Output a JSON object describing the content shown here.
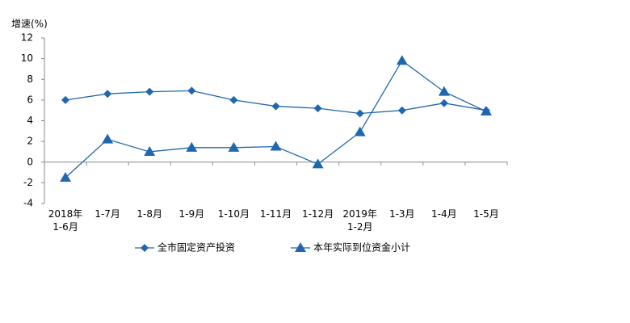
{
  "chart_data": {
    "type": "line",
    "y_label": "增速(%)",
    "categories": [
      "2018年\n1-6月",
      "1-7月",
      "1-8月",
      "1-9月",
      "1-10月",
      "1-11月",
      "1-12月",
      "2019年\n1-2月",
      "1-3月",
      "1-4月",
      "1-5月"
    ],
    "series": [
      {
        "name": "全市固定资产投资",
        "color": "#2067b0",
        "marker": "diamond",
        "values": [
          6.0,
          6.6,
          6.8,
          6.9,
          6.0,
          5.4,
          5.2,
          4.7,
          5.0,
          5.7,
          5.0
        ]
      },
      {
        "name": "本年实际到位资金小计",
        "color": "#2067b0",
        "marker": "triangle",
        "values": [
          -1.5,
          2.2,
          1.0,
          1.4,
          1.4,
          1.5,
          -0.2,
          2.9,
          9.8,
          6.8,
          4.9
        ]
      }
    ],
    "ylim": [
      -4,
      12
    ],
    "yticks": [
      -4,
      -2,
      0,
      2,
      4,
      6,
      8,
      10,
      12
    ],
    "grid": false
  }
}
